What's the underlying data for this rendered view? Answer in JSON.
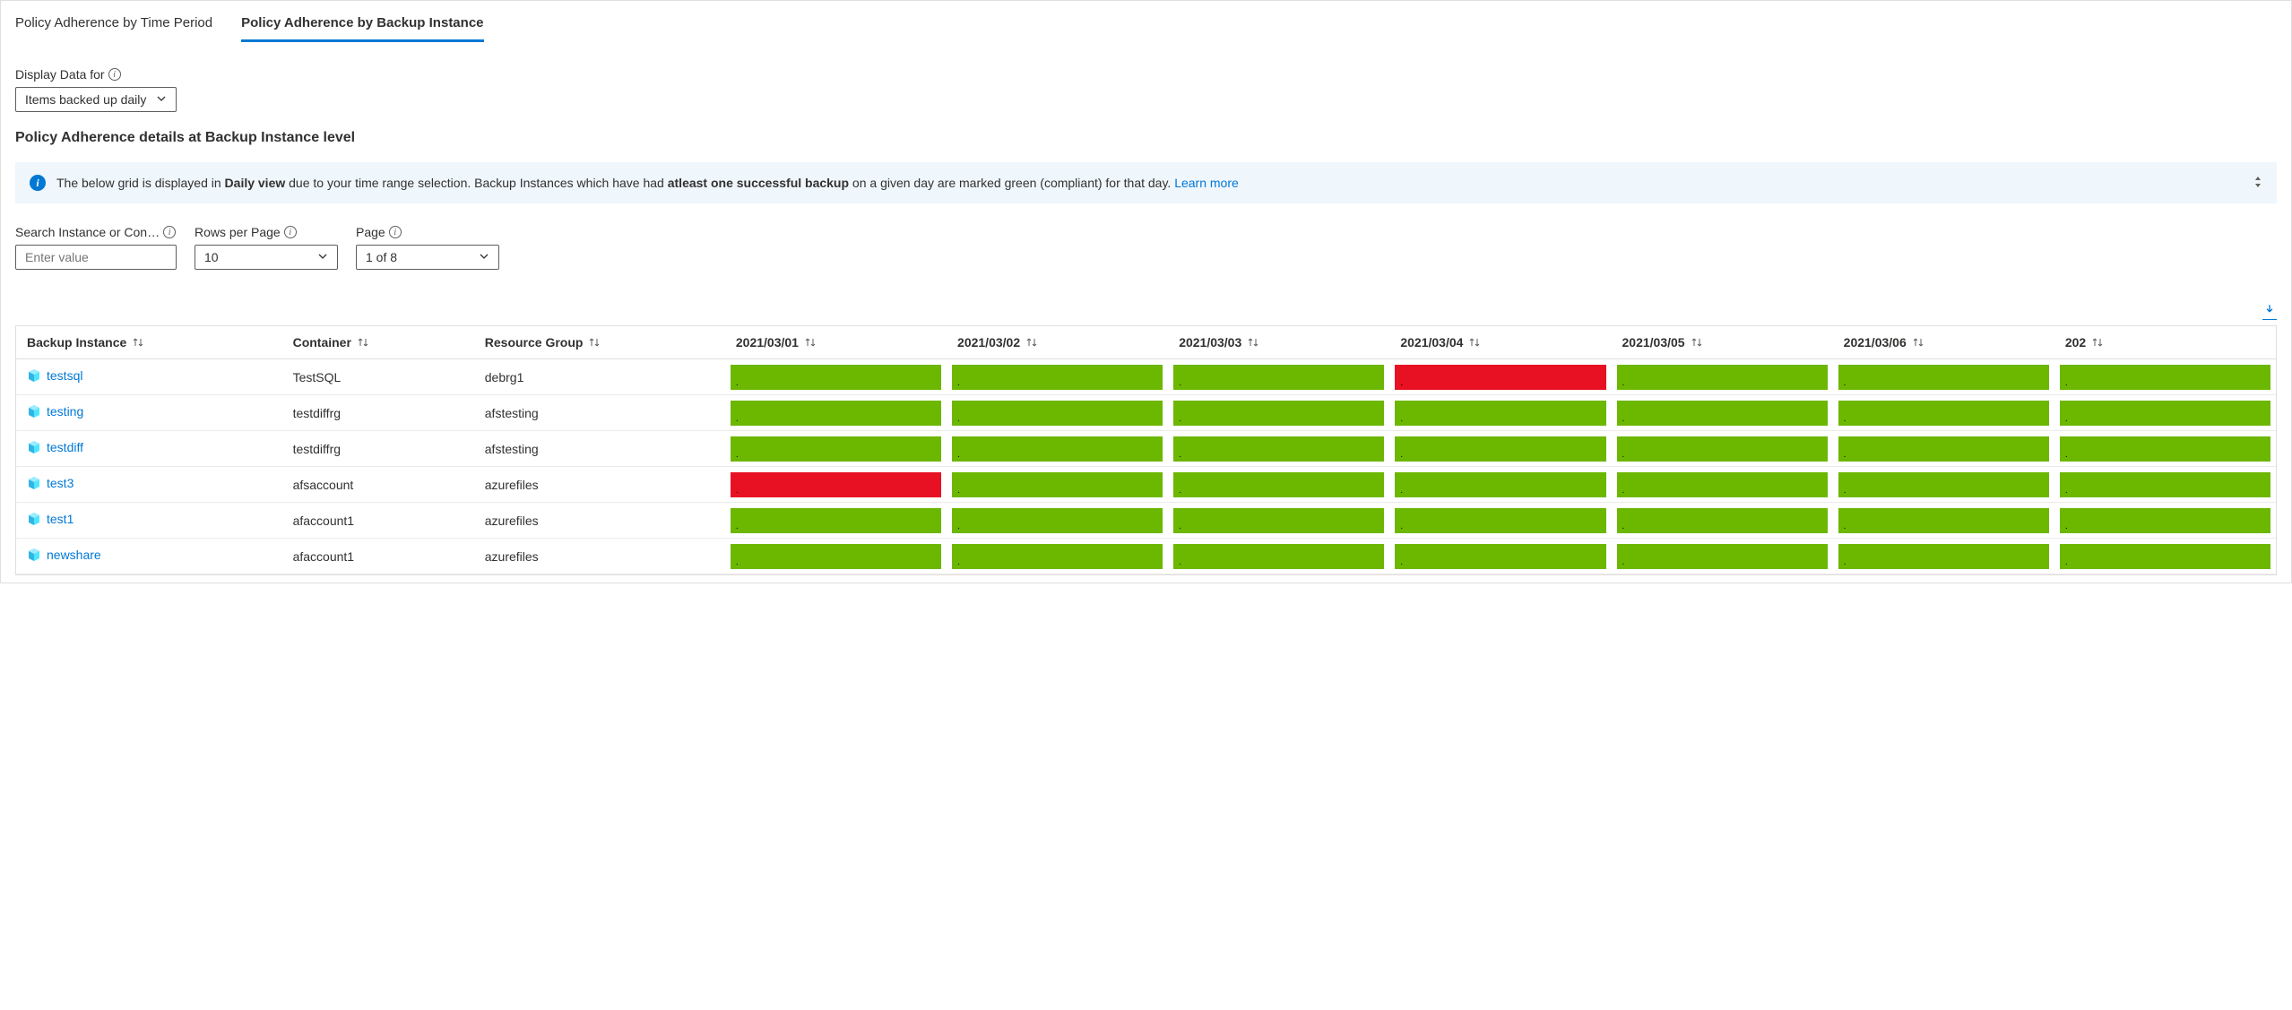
{
  "colors": {
    "compliant": "#6cb700",
    "noncompliant": "#e81123",
    "link": "#0078d4",
    "banner_bg": "#eff6fc"
  },
  "tabs": [
    {
      "label": "Policy Adherence by Time Period",
      "active": false
    },
    {
      "label": "Policy Adherence by Backup Instance",
      "active": true
    }
  ],
  "display_data": {
    "label": "Display Data for",
    "value": "Items backed up daily"
  },
  "section_title": "Policy Adherence details at Backup Instance level",
  "banner": {
    "prefix": "The below grid is displayed in ",
    "bold1": "Daily view",
    "mid": " due to your time range selection. Backup Instances which have had ",
    "bold2": "atleast one successful backup",
    "suffix": " on a given day are marked green (compliant) for that day. ",
    "link": "Learn more"
  },
  "filters": {
    "search": {
      "label": "Search Instance or Con…",
      "placeholder": "Enter value"
    },
    "rows": {
      "label": "Rows per Page",
      "value": "10"
    },
    "page": {
      "label": "Page",
      "value": "1 of 8"
    }
  },
  "columns": {
    "instance": "Backup Instance",
    "container": "Container",
    "rg": "Resource Group",
    "dates": [
      "2021/03/01",
      "2021/03/02",
      "2021/03/03",
      "2021/03/04",
      "2021/03/05",
      "2021/03/06",
      "202"
    ]
  },
  "rows": [
    {
      "instance": "testsql",
      "container": "TestSQL",
      "rg": "debrg1",
      "status": [
        "g",
        "g",
        "g",
        "r",
        "g",
        "g",
        "g"
      ]
    },
    {
      "instance": "testing",
      "container": "testdiffrg",
      "rg": "afstesting",
      "status": [
        "g",
        "g",
        "g",
        "g",
        "g",
        "g",
        "g"
      ]
    },
    {
      "instance": "testdiff",
      "container": "testdiffrg",
      "rg": "afstesting",
      "status": [
        "g",
        "g",
        "g",
        "g",
        "g",
        "g",
        "g"
      ]
    },
    {
      "instance": "test3",
      "container": "afsaccount",
      "rg": "azurefiles",
      "status": [
        "r",
        "g",
        "g",
        "g",
        "g",
        "g",
        "g"
      ]
    },
    {
      "instance": "test1",
      "container": "afaccount1",
      "rg": "azurefiles",
      "status": [
        "g",
        "g",
        "g",
        "g",
        "g",
        "g",
        "g"
      ]
    },
    {
      "instance": "newshare",
      "container": "afaccount1",
      "rg": "azurefiles",
      "status": [
        "g",
        "g",
        "g",
        "g",
        "g",
        "g",
        "g"
      ]
    }
  ]
}
